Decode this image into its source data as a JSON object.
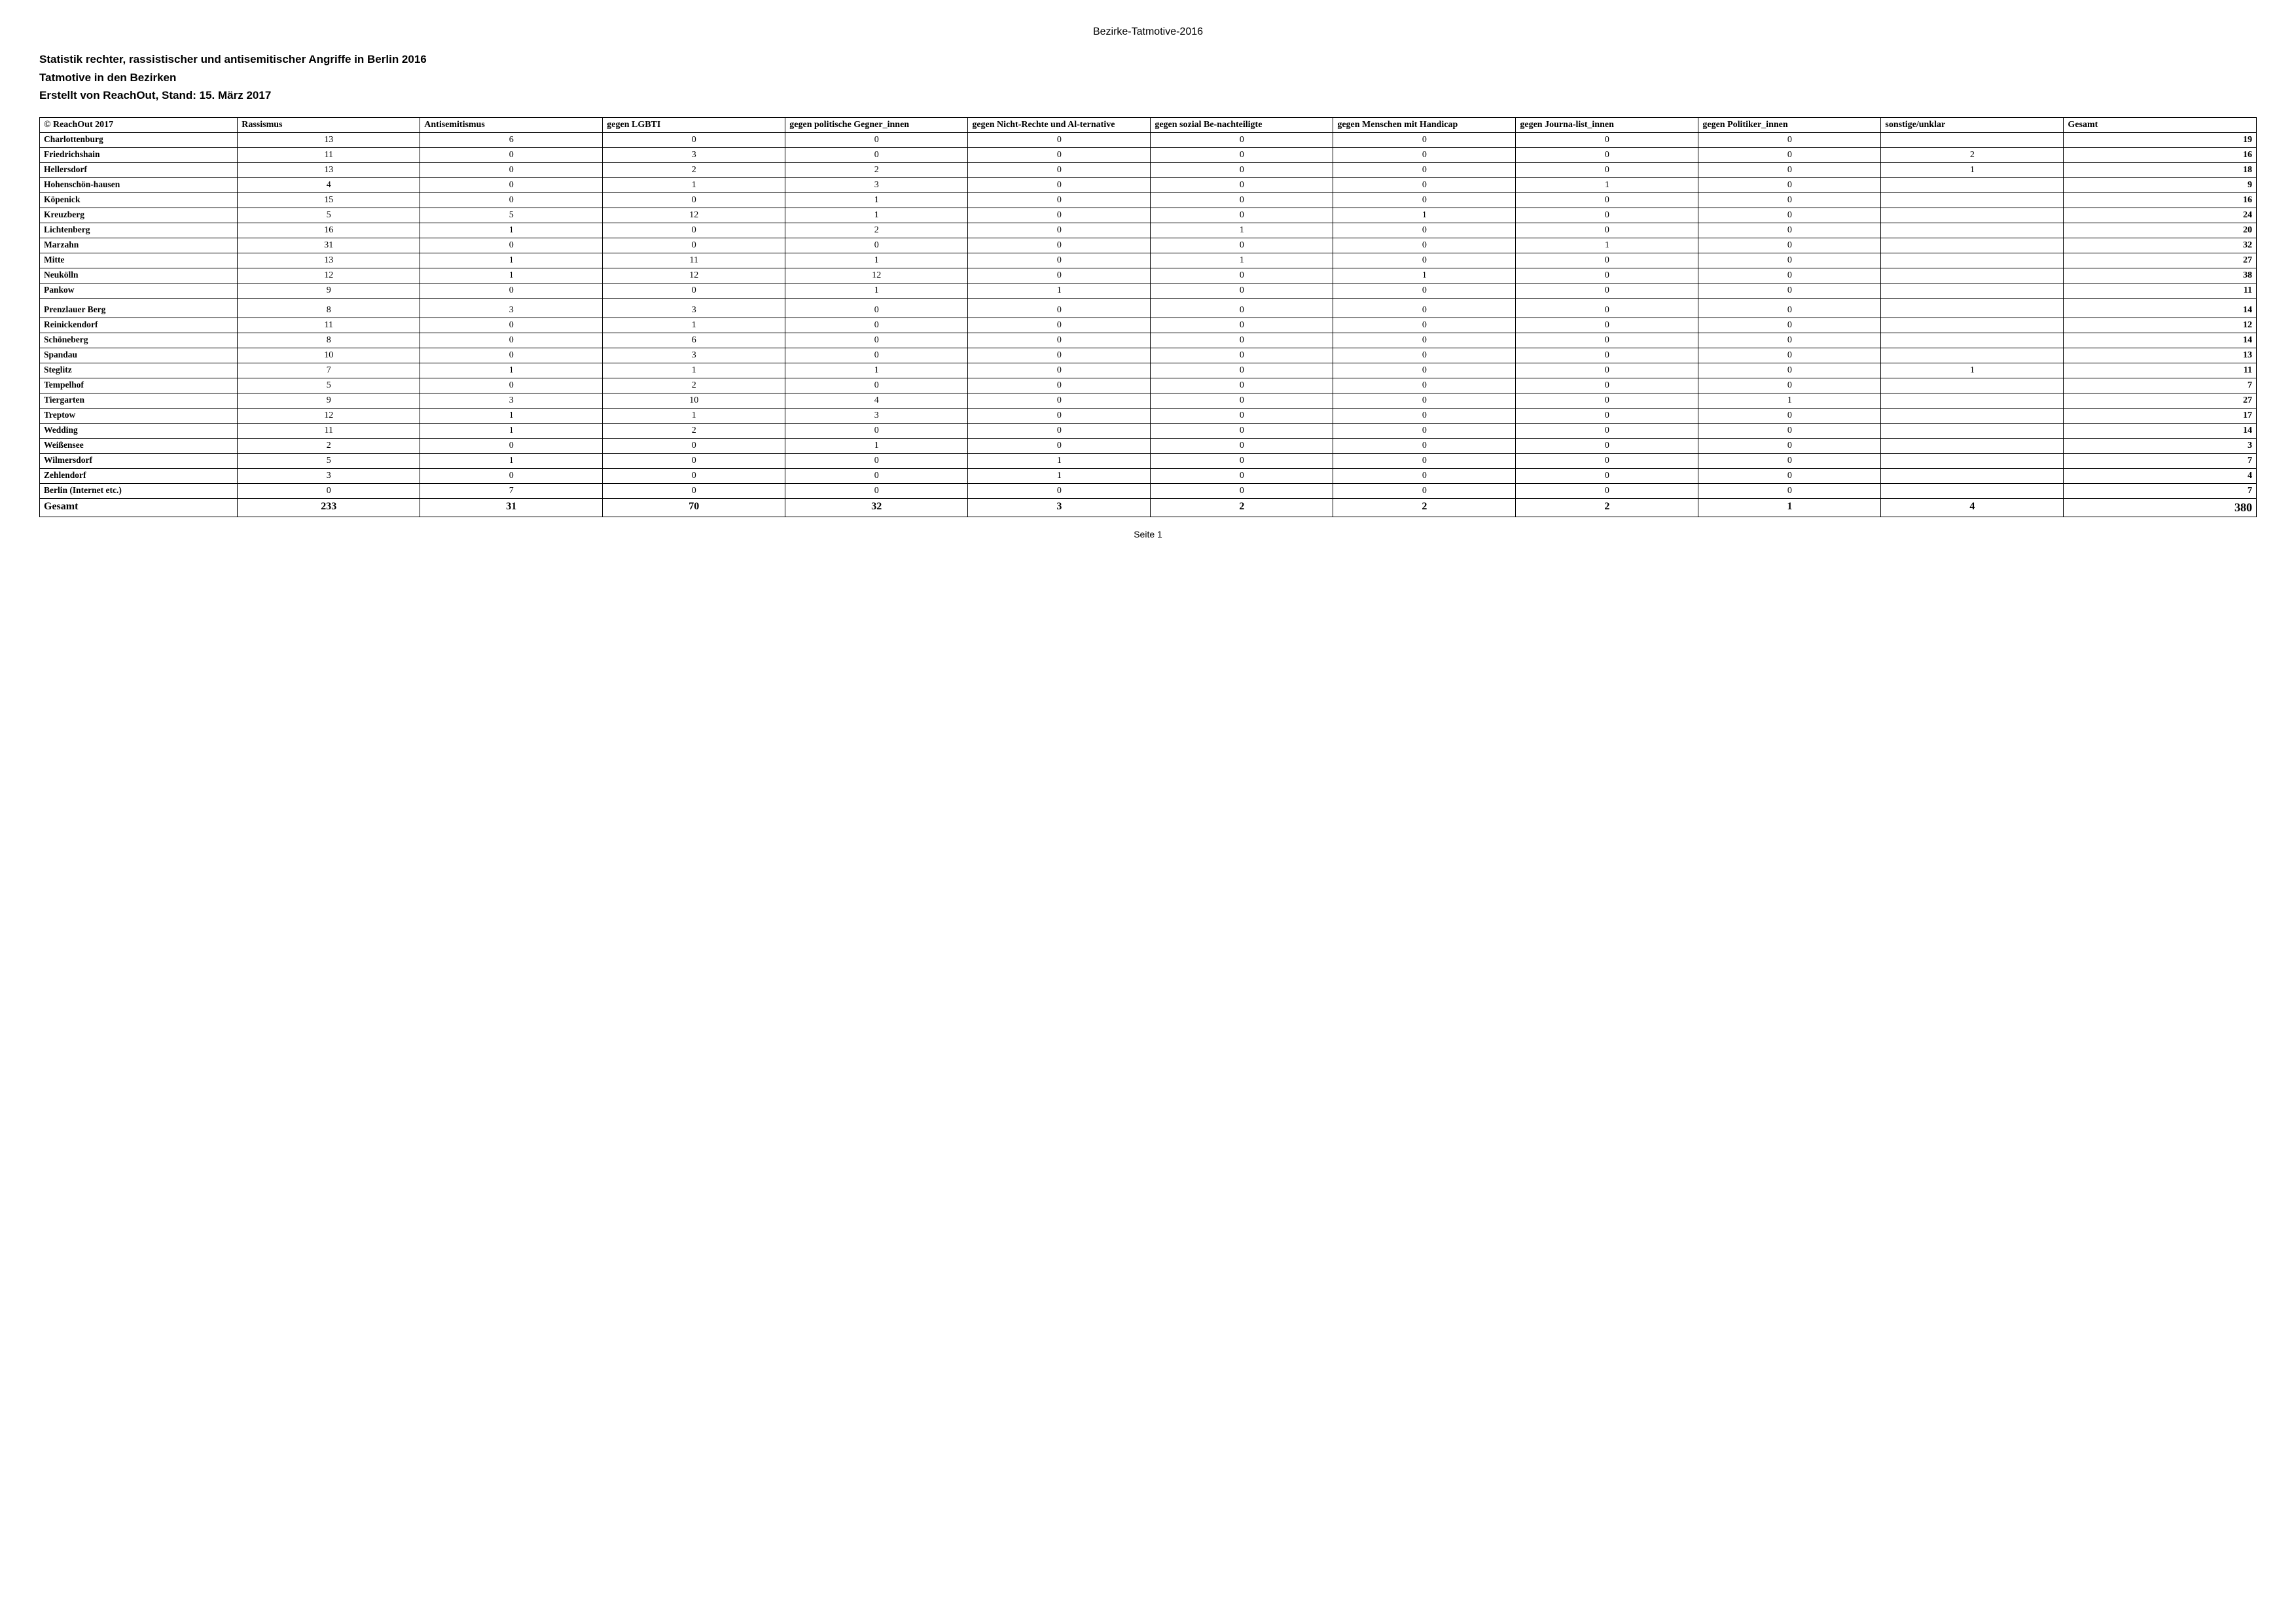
{
  "header": {
    "doc_title": "Bezirke-Tatmotive-2016",
    "line1": "Statistik rechter, rassistischer und antisemitischer Angriffe in Berlin 2016",
    "line2": "Tatmotive in den Bezirken",
    "line3": "Erstellt von ReachOut, Stand: 15. März 2017",
    "footer": "Seite 1"
  },
  "styling": {
    "background_color": "#ffffff",
    "text_color": "#000000",
    "border_color": "#000000",
    "header_font": "Arial",
    "body_font": "Times New Roman",
    "title_fontsize_pt": 13,
    "cell_fontsize_pt": 11,
    "total_fontsize_pt": 14
  },
  "table": {
    "columns": [
      "© ReachOut 2017",
      "Rassismus",
      "Antisemitismus",
      "gegen LGBTI",
      "gegen politische Gegner_innen",
      "gegen Nicht-Rechte und Alternative",
      "gegen sozial Benachteiligte",
      "gegen Menschen mit Handicap",
      "gegen Journalist_innen",
      "gegen Politiker_innen",
      "sonstige/unklar",
      "Gesamt"
    ],
    "column_html": [
      "© ReachOut 2017",
      "Rassismus",
      "Antisemitismus",
      "gegen LGBTI",
      "gegen politische Gegner_innen",
      "gegen Nicht-Rechte und Al-ternative",
      "gegen sozial Be-nachteiligte",
      "gegen Menschen mit Handicap",
      "gegen Journa-list_innen",
      "gegen Politiker_innen",
      "sonstige/unklar",
      "Gesamt"
    ],
    "rows": [
      {
        "label": "Charlottenburg",
        "v": [
          "13",
          "6",
          "0",
          "0",
          "0",
          "0",
          "0",
          "0",
          "0",
          "",
          "19"
        ]
      },
      {
        "label": "Friedrichshain",
        "v": [
          "11",
          "0",
          "3",
          "0",
          "0",
          "0",
          "0",
          "0",
          "0",
          "2",
          "16"
        ]
      },
      {
        "label": "Hellersdorf",
        "v": [
          "13",
          "0",
          "2",
          "2",
          "0",
          "0",
          "0",
          "0",
          "0",
          "1",
          "18"
        ]
      },
      {
        "label": "Hohenschön-hausen",
        "v": [
          "4",
          "0",
          "1",
          "3",
          "0",
          "0",
          "0",
          "1",
          "0",
          "",
          "9"
        ]
      },
      {
        "label": "Köpenick",
        "v": [
          "15",
          "0",
          "0",
          "1",
          "0",
          "0",
          "0",
          "0",
          "0",
          "",
          "16"
        ]
      },
      {
        "label": "Kreuzberg",
        "v": [
          "5",
          "5",
          "12",
          "1",
          "0",
          "0",
          "1",
          "0",
          "0",
          "",
          "24"
        ]
      },
      {
        "label": "Lichtenberg",
        "v": [
          "16",
          "1",
          "0",
          "2",
          "0",
          "1",
          "0",
          "0",
          "0",
          "",
          "20"
        ]
      },
      {
        "label": "Marzahn",
        "v": [
          "31",
          "0",
          "0",
          "0",
          "0",
          "0",
          "0",
          "1",
          "0",
          "",
          "32"
        ]
      },
      {
        "label": "Mitte",
        "v": [
          "13",
          "1",
          "11",
          "1",
          "0",
          "1",
          "0",
          "0",
          "0",
          "",
          "27"
        ]
      },
      {
        "label": "Neukölln",
        "v": [
          "12",
          "1",
          "12",
          "12",
          "0",
          "0",
          "1",
          "0",
          "0",
          "",
          "38"
        ]
      },
      {
        "label": "Pankow",
        "v": [
          "9",
          "0",
          "0",
          "1",
          "1",
          "0",
          "0",
          "0",
          "0",
          "",
          "11"
        ]
      },
      {
        "label": "Prenzlauer Berg",
        "v": [
          "8",
          "3",
          "3",
          "0",
          "0",
          "0",
          "0",
          "0",
          "0",
          "",
          "14"
        ],
        "tall": true
      },
      {
        "label": "Reinickendorf",
        "v": [
          "11",
          "0",
          "1",
          "0",
          "0",
          "0",
          "0",
          "0",
          "0",
          "",
          "12"
        ]
      },
      {
        "label": "Schöneberg",
        "v": [
          "8",
          "0",
          "6",
          "0",
          "0",
          "0",
          "0",
          "0",
          "0",
          "",
          "14"
        ]
      },
      {
        "label": "Spandau",
        "v": [
          "10",
          "0",
          "3",
          "0",
          "0",
          "0",
          "0",
          "0",
          "0",
          "",
          "13"
        ]
      },
      {
        "label": "Steglitz",
        "v": [
          "7",
          "1",
          "1",
          "1",
          "0",
          "0",
          "0",
          "0",
          "0",
          "1",
          "11"
        ]
      },
      {
        "label": "Tempelhof",
        "v": [
          "5",
          "0",
          "2",
          "0",
          "0",
          "0",
          "0",
          "0",
          "0",
          "",
          "7"
        ]
      },
      {
        "label": "Tiergarten",
        "v": [
          "9",
          "3",
          "10",
          "4",
          "0",
          "0",
          "0",
          "0",
          "1",
          "",
          "27"
        ]
      },
      {
        "label": "Treptow",
        "v": [
          "12",
          "1",
          "1",
          "3",
          "0",
          "0",
          "0",
          "0",
          "0",
          "",
          "17"
        ]
      },
      {
        "label": "Wedding",
        "v": [
          "11",
          "1",
          "2",
          "0",
          "0",
          "0",
          "0",
          "0",
          "0",
          "",
          "14"
        ]
      },
      {
        "label": "Weißensee",
        "v": [
          "2",
          "0",
          "0",
          "1",
          "0",
          "0",
          "0",
          "0",
          "0",
          "",
          "3"
        ]
      },
      {
        "label": "Wilmersdorf",
        "v": [
          "5",
          "1",
          "0",
          "0",
          "1",
          "0",
          "0",
          "0",
          "0",
          "",
          "7"
        ]
      },
      {
        "label": "Zehlendorf",
        "v": [
          "3",
          "0",
          "0",
          "0",
          "1",
          "0",
          "0",
          "0",
          "0",
          "",
          "4"
        ]
      },
      {
        "label": "Berlin (Internet etc.)",
        "v": [
          "0",
          "7",
          "0",
          "0",
          "0",
          "0",
          "0",
          "0",
          "0",
          "",
          "7"
        ]
      }
    ],
    "total": {
      "label": "Gesamt",
      "v": [
        "233",
        "31",
        "70",
        "32",
        "3",
        "2",
        "2",
        "2",
        "1",
        "4",
        "380"
      ]
    }
  }
}
